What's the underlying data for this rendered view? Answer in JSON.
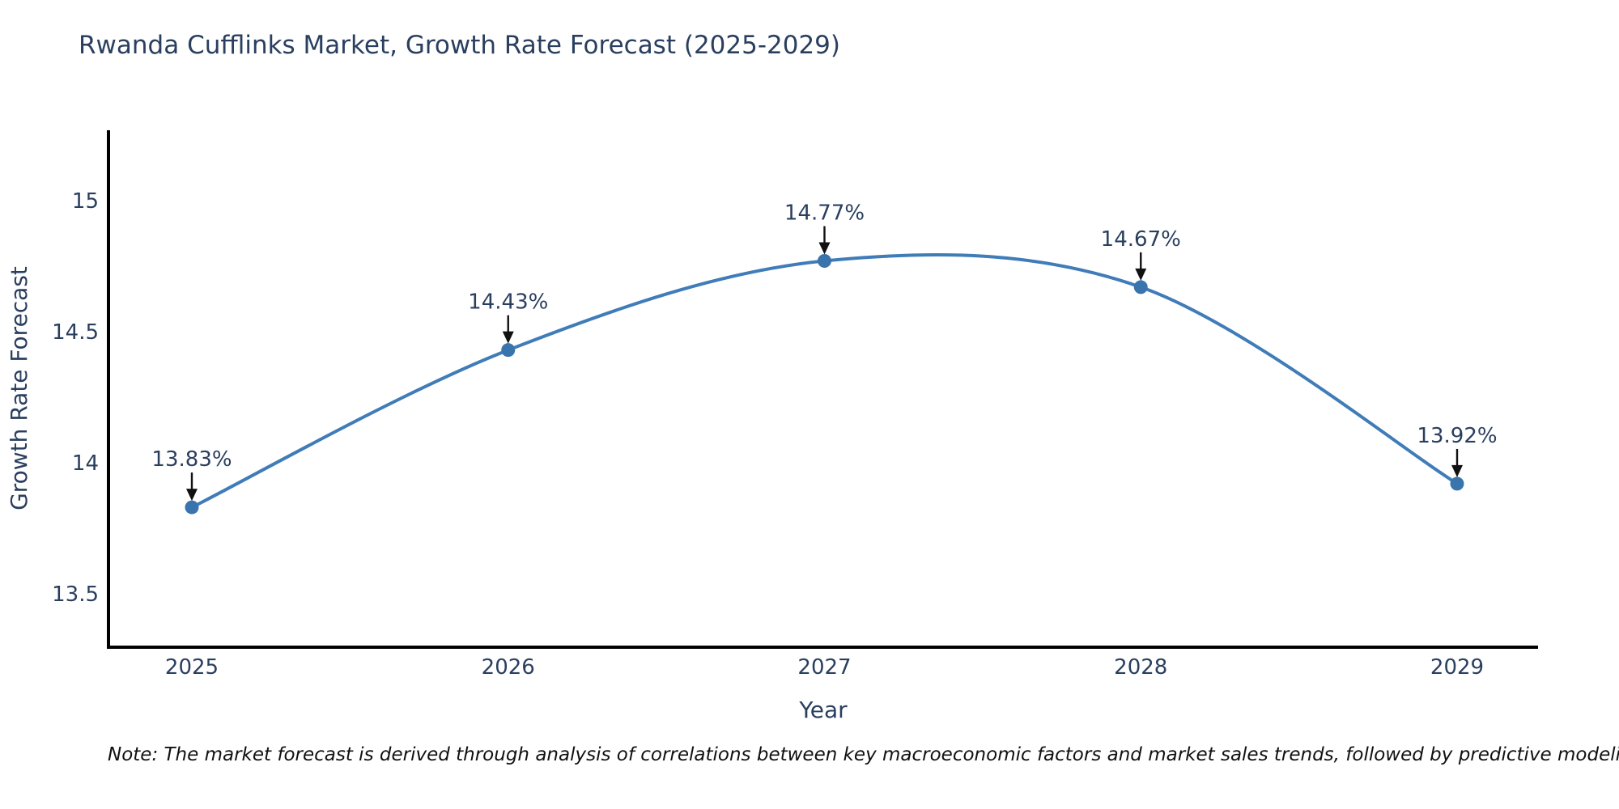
{
  "title": "Rwanda Cufflinks Market, Growth Rate Forecast (2025-2029)",
  "footnote": "Note: The market forecast is derived through analysis of correlations between key macroeconomic factors and market sales trends, followed by predictive modeling to project future sal",
  "colors": {
    "line": "#3f7cb8",
    "marker": "#3a74ad",
    "axis": "#000000",
    "text": "#2a3f5f",
    "arrow": "#111111",
    "background": "#ffffff"
  },
  "chart_data": {
    "type": "line",
    "title": "Rwanda Cufflinks Market, Growth Rate Forecast (2025-2029)",
    "x": [
      "2025",
      "2026",
      "2027",
      "2028",
      "2029"
    ],
    "series": [
      {
        "name": "Growth Rate Forecast",
        "values": [
          13.83,
          14.43,
          14.77,
          14.67,
          13.92
        ]
      }
    ],
    "point_labels": [
      "13.83%",
      "14.43%",
      "14.77%",
      "14.67%",
      "13.92%"
    ],
    "xlabel": "Year",
    "ylabel": "Growth Rate Forecast",
    "y_ticks": [
      {
        "value": 15,
        "label": "15"
      },
      {
        "value": 14.5,
        "label": "14.5"
      },
      {
        "value": 14,
        "label": "14"
      },
      {
        "value": 13.5,
        "label": "13.5"
      }
    ],
    "ylim": [
      13.3,
      15.26
    ],
    "xlim": [
      2024.74,
      2029.26
    ],
    "line_shape": "spline",
    "grid": false,
    "legend": false,
    "markers": true,
    "annotations_have_arrows": true
  }
}
